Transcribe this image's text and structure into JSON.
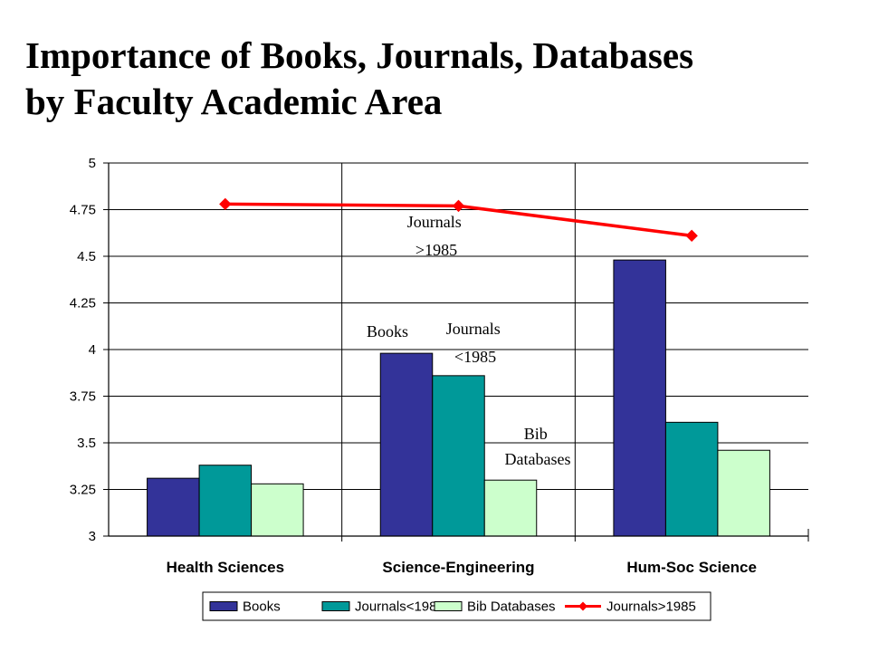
{
  "chart_data": {
    "type": "bar",
    "title_lines": [
      "Importance of Books, Journals, Databases",
      "by Faculty Academic Area"
    ],
    "categories": [
      "Health Sciences",
      "Science-Engineering",
      "Hum-Soc Science"
    ],
    "series": [
      {
        "name": "Books",
        "type": "bar",
        "color": "#333399",
        "values": [
          3.31,
          3.98,
          4.48
        ]
      },
      {
        "name": "Journals<1985",
        "type": "bar",
        "color": "#009999",
        "values": [
          3.38,
          3.86,
          3.61
        ]
      },
      {
        "name": "Bib Databases",
        "type": "bar",
        "color": "#CCFFCC",
        "values": [
          3.28,
          3.3,
          3.46
        ]
      },
      {
        "name": "Journals>1985",
        "type": "line",
        "color": "#FF0000",
        "values": [
          4.78,
          4.77,
          4.61
        ]
      }
    ],
    "ylim": [
      3,
      5
    ],
    "yticks": [
      "3",
      "3.25",
      "3.5",
      "3.75",
      "4",
      "4.25",
      "4.5",
      "4.75",
      "5"
    ],
    "grid": true,
    "legend": "bottom",
    "annotations": [
      {
        "lines": [
          "Journals",
          ">1985"
        ]
      },
      {
        "lines": [
          "Books"
        ]
      },
      {
        "lines": [
          "Journals",
          "<1985"
        ]
      },
      {
        "lines": [
          "Bib",
          "Databases"
        ]
      }
    ]
  }
}
